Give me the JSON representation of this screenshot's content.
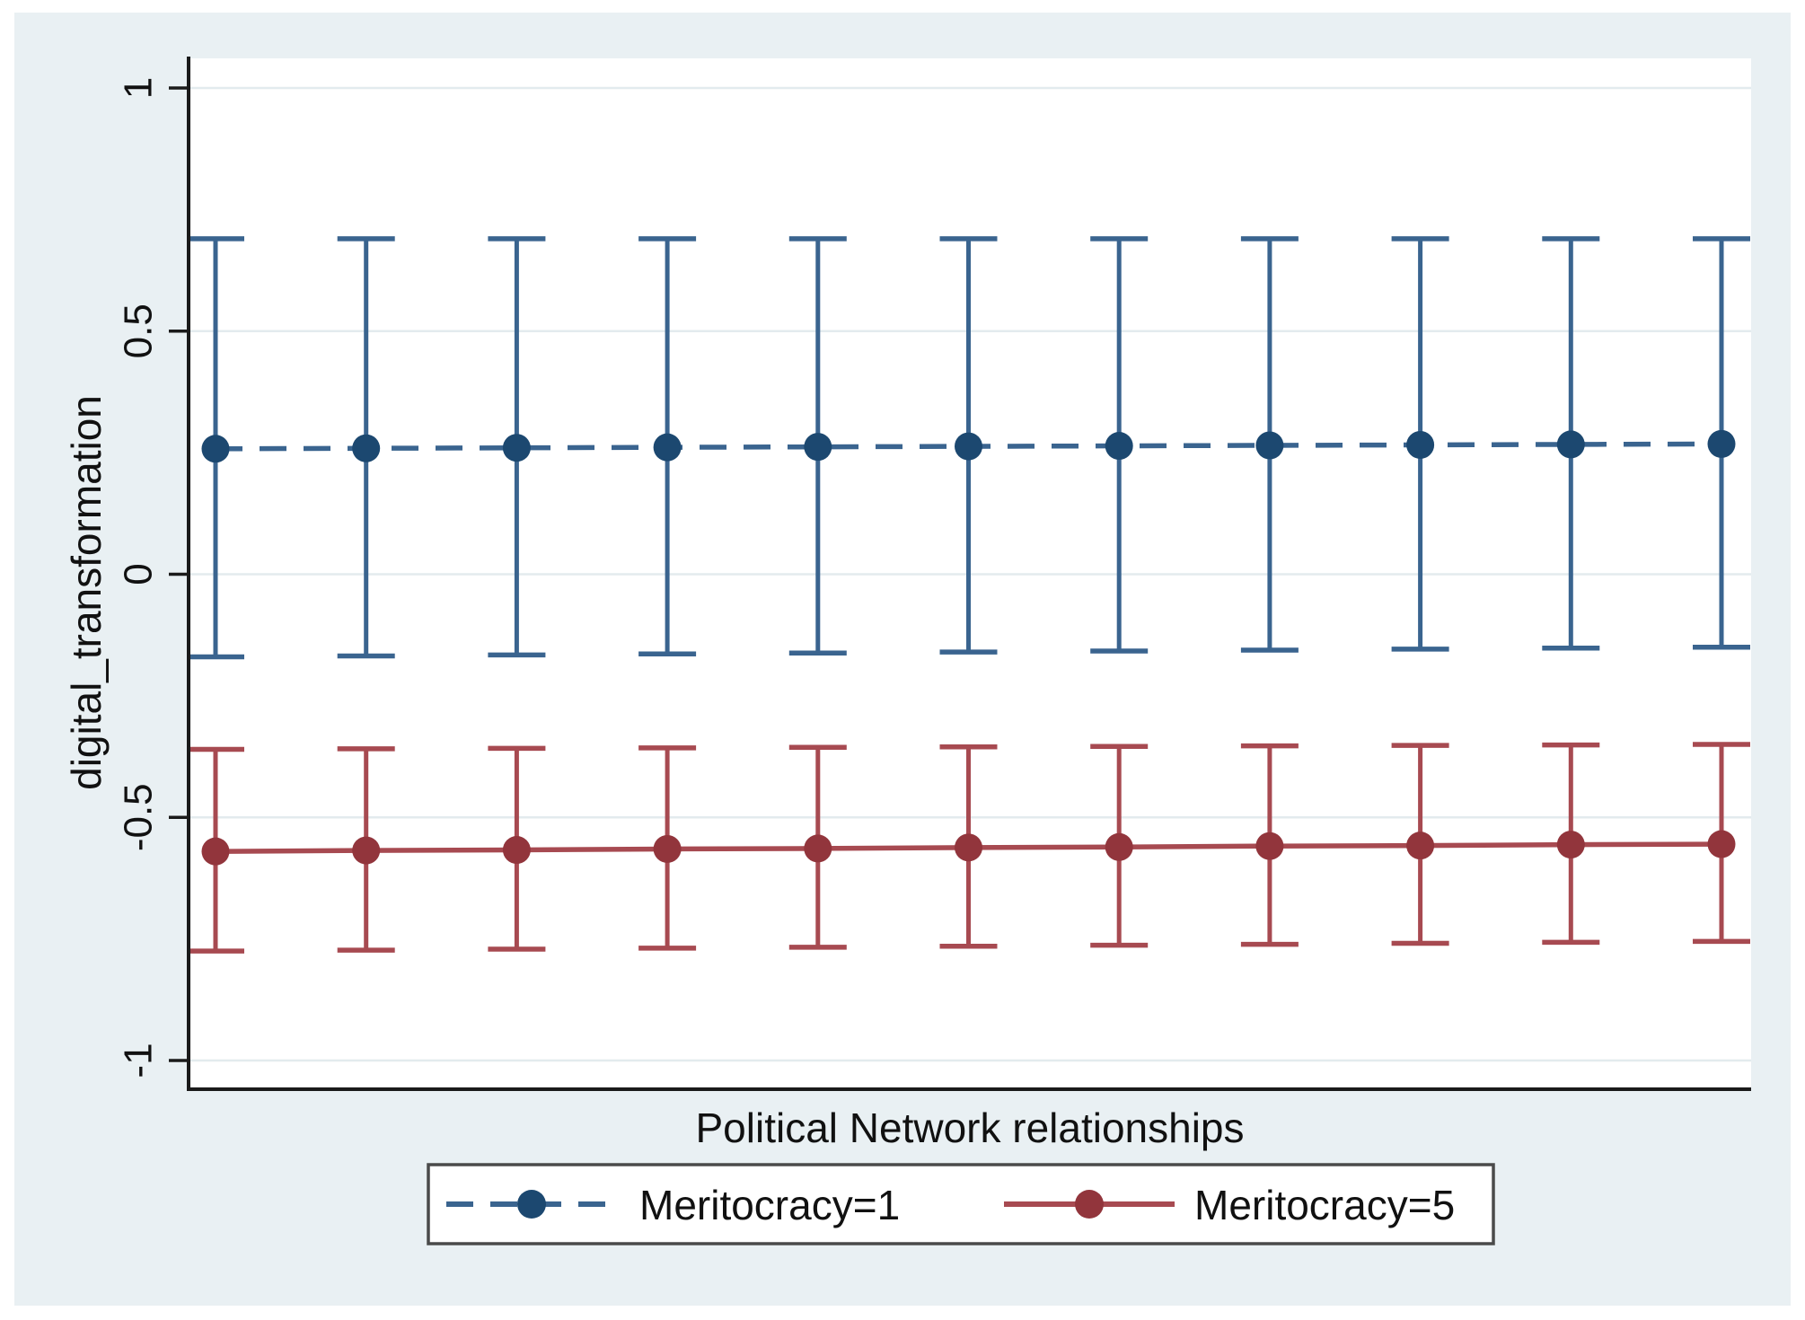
{
  "chart": {
    "ylabel": "digital_transformation",
    "xlabel": "Political Network relationships"
  },
  "legend": {
    "items": [
      {
        "label": "Meritocracy=1"
      },
      {
        "label": "Meritocracy=5"
      }
    ]
  },
  "colors": {
    "background": "#e9f0f3",
    "plot_background": "#ffffff",
    "axis": "#1a1a1a",
    "gridline": "#e3ebee",
    "legend_border": "#4a4a4a",
    "blue_line": "#3a648f",
    "blue_marker": "#1c4870",
    "red_line": "#a74a51",
    "red_marker": "#92353c"
  },
  "chart_data": {
    "type": "line",
    "title": "",
    "xlabel": "Political Network relationships",
    "ylabel": "digital_transformation",
    "x": [
      1,
      2,
      3,
      4,
      5,
      6,
      7,
      8,
      9,
      10,
      11
    ],
    "x_tick_labels": [],
    "yticks": [
      1,
      0.5,
      0,
      -0.5,
      -1
    ],
    "ytick_labels": [
      "1",
      "0.5",
      "0",
      "-0.5",
      "-1"
    ],
    "ylim": [
      -1.06,
      1.07
    ],
    "grid": true,
    "legend_position": "bottom",
    "error_bars": true,
    "series": [
      {
        "name": "Meritocracy=1",
        "style": "dashed",
        "color": "#3a648f",
        "marker_color": "#1c4870",
        "values": [
          0.258,
          0.259,
          0.26,
          0.261,
          0.262,
          0.263,
          0.264,
          0.265,
          0.266,
          0.267,
          0.268
        ],
        "ci_upper": [
          0.69,
          0.69,
          0.69,
          0.69,
          0.69,
          0.69,
          0.69,
          0.69,
          0.69,
          0.69,
          0.69
        ],
        "ci_lower": [
          -0.17,
          -0.168,
          -0.166,
          -0.164,
          -0.162,
          -0.16,
          -0.158,
          -0.156,
          -0.154,
          -0.152,
          -0.15
        ]
      },
      {
        "name": "Meritocracy=5",
        "style": "solid",
        "color": "#a74a51",
        "marker_color": "#92353c",
        "values": [
          -0.57,
          -0.568,
          -0.567,
          -0.565,
          -0.564,
          -0.562,
          -0.561,
          -0.559,
          -0.558,
          -0.556,
          -0.555
        ],
        "ci_upper": [
          -0.36,
          -0.359,
          -0.358,
          -0.357,
          -0.356,
          -0.355,
          -0.354,
          -0.353,
          -0.352,
          -0.351,
          -0.35
        ],
        "ci_lower": [
          -0.775,
          -0.773,
          -0.771,
          -0.769,
          -0.767,
          -0.765,
          -0.763,
          -0.761,
          -0.759,
          -0.757,
          -0.755
        ]
      }
    ]
  }
}
